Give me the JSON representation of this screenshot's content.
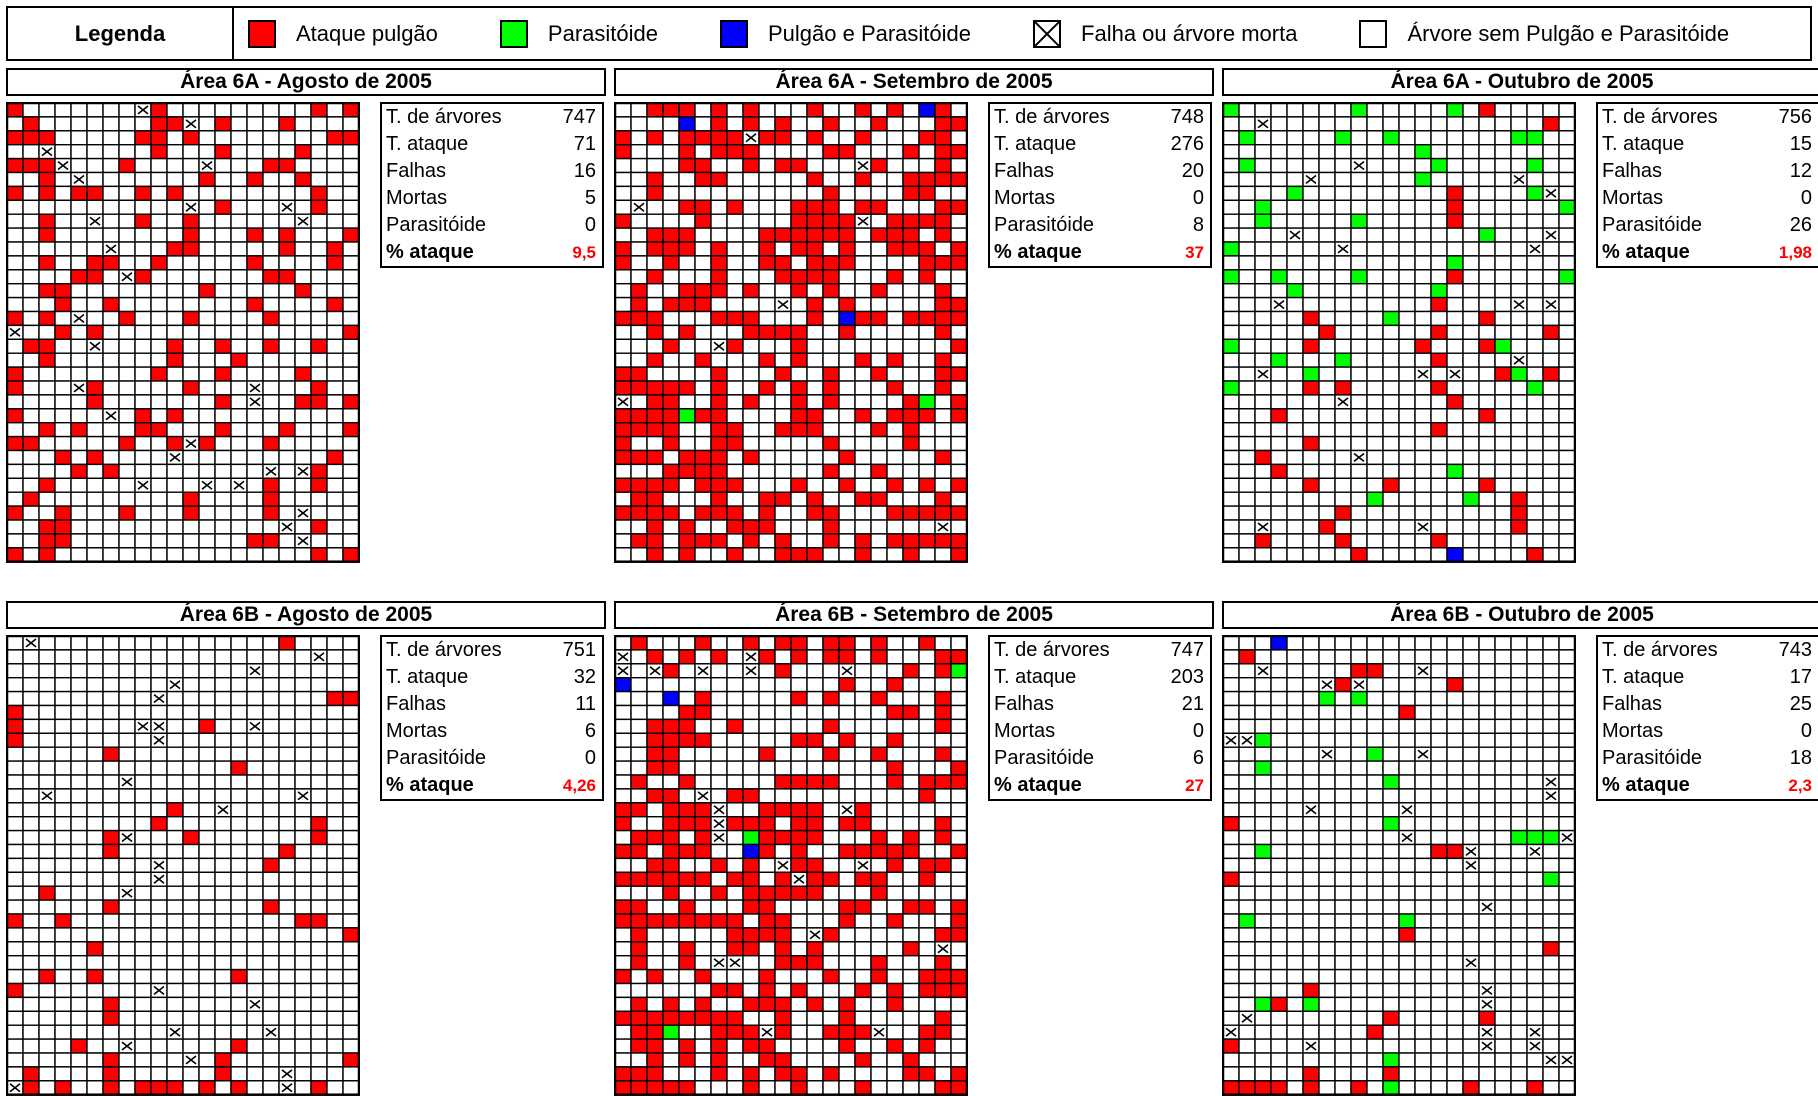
{
  "legend": {
    "title": "Legenda",
    "items": [
      {
        "label": "Ataque pulgão",
        "color": "#ff0000",
        "type": "fill"
      },
      {
        "label": "Parasitóide",
        "color": "#00ff00",
        "type": "fill"
      },
      {
        "label": "Pulgão e Parasitóide",
        "color": "#0000ff",
        "type": "fill"
      },
      {
        "label": "Falha ou árvore morta",
        "color": "#ffffff",
        "type": "cross"
      },
      {
        "label": "Árvore sem Pulgão e Parasitóide",
        "color": "#ffffff",
        "type": "empty"
      }
    ]
  },
  "stat_labels": {
    "trees": "T. de árvores",
    "attack": "T. ataque",
    "failures": "Falhas",
    "dead": "Mortas",
    "parasitoid": "Parasitóide",
    "pct": "% ataque"
  },
  "chart_data": [
    {
      "type": "heatmap",
      "title": "Área 6A - Agosto de 2005",
      "cols": 22,
      "rows": 33,
      "stats": {
        "trees": "747",
        "attack": "71",
        "failures": "16",
        "dead": "5",
        "parasitoid": "0",
        "pct": "9,5"
      },
      "cells": [
        "R.......XR.........R.R",
        ".R.......RRX.R...R....",
        "RRR.....RR.R........RR",
        "..X......R...R....R...",
        "RRRX...R....X...RR....",
        "..R.X.......R..R..R...",
        "R.R.RR..R.R........R..",
        "...........X.R...X.R..",
        "..R..X..R..R......X...",
        "..R........R...R.R...R",
        "......X...RR.....R..R.",
        "..R..RR..R.....R....R.",
        "....RR.XR.......RR....",
        "..RR........R.....R...",
        "...R..R........R....R.",
        "R.R.X..R...R....R.....",
        "X..R.R...............R",
        ".RR..X....R..R..R..R..",
        "..R.......R...R.......",
        "R........R...R....R...",
        "R...XR.....R...X...R..",
        ".....R.......R.X..RR.R",
        "R.....X.R.R...........",
        "..R.R...RR...R...R...R",
        "RR.....R..RXR...R.....",
        "...R.R....X.........R.",
        "....R.R.........X.XR..",
        "..R.....X...X.X.R..R..",
        ".R.........R....R.....",
        "R..R...R...R....R.X...",
        "..RR.............X.R..",
        "..RR...........RR.X...",
        "R.R................R.R"
      ]
    },
    {
      "type": "heatmap",
      "title": "Área 6A - Setembro de 2005",
      "cols": 22,
      "rows": 33,
      "stats": {
        "trees": "748",
        "attack": "276",
        "failures": "20",
        "dead": "0",
        "parasitoid": "8",
        "pct": "37"
      },
      "cells": [
        "..RRR.R.R...R..R.R.BR.",
        "....B.R.R.R..R..R...RR",
        "R.R.RRRRXRR.R..R...RR.",
        "R...R.RRR....RR...R.RR",
        "....RR..R.RR...XR...R.",
        "..R..RR.....R..R..RRRR",
        "..R..........R....RR..",
        ".X..RR.R...RRR.RR...RR",
        "R....R.....RRRRX.RRRR.",
        "..RRR....RRRRRR.RRR.R.",
        "R.RRR.R..R.RR.R..RRR.R",
        "R..R..R..RR.RRR....RRR",
        "..R...R...RRRR...R.R..",
        ".R..RRR.R..R.R..R...R.",
        ".R.RRR....X.R.R.....RR",
        "RRR...RRR...R.BRR.RRRR",
        "..R.R...RRRR..R.....R.",
        "...R..XR...R.........R",
        "..R..R...R.R...R.R..R.",
        "RR....R...R..R..R...RR",
        "RRRRR.R..R.R.R...R..R.",
        "X.RR..R.R..R.R....RG.R",
        "RRRRGRR....RR..R.RRR.R",
        "RRRR..RR..RRR...R.R...",
        "R..R..RR.....R....R...",
        "RRR.RRR.R.....R.....R.",
        "...RRRR......R..R.....",
        "RRRR.RRR...R..R..R.R.R",
        ".RR...R..RR.R..RR...R.",
        "RRRR.RRR.R..RR...RRRRR",
        "..R.R..RRR...R......X.",
        ".RR.RRR.R.R..R.R.RRRRR",
        "..R.R..R..RRR..R..R..R"
      ]
    },
    {
      "type": "heatmap",
      "title": "Área 6A - Outubro de 2005",
      "cols": 22,
      "rows": 33,
      "stats": {
        "trees": "756",
        "attack": "15",
        "failures": "12",
        "dead": "0",
        "parasitoid": "26",
        "pct": "1,98"
      },
      "cells": [
        "G.......G.....G.R.....",
        "..X.................R.",
        ".G.....G..G.......GG..",
        "............G...........",
        ".G......X....G.....G..",
        ".....X......G.....X...",
        "....G.........R....GX.",
        "..G...........R......G",
        "..G.....G.....R.......",
        "....X...........G...X.",
        "G......X...........X..",
        "..............G.......",
        "G..G....G.....R......G",
        "....G........G........",
        "...X.........R....X.X.",
        ".....R....G.....R.....",
        "......R......R......R.",
        "G....R......R...RG....",
        "...G...G.....R....X...",
        "..X..G......X.X..RG.R.",
        "G....R.R.....R.....G..",
        ".......X......R.......",
        "...R............R.....",
        ".............R........",
        ".....R................",
        "..R.....X.............",
        "...R..........G.......",
        ".....R....R.....R.....",
        ".........G.....G..R...",
        ".......R..........R...",
        "..X...R.....X.....R...",
        "..R....R.....R........",
        "........R.....B....R.."
      ]
    },
    {
      "type": "heatmap",
      "title": "Área 6B - Agosto de 2005",
      "cols": 22,
      "rows": 33,
      "stats": {
        "trees": "751",
        "attack": "32",
        "failures": "11",
        "dead": "6",
        "parasitoid": "0",
        "pct": "4,26"
      },
      "cells": [
        ".X...............R....",
        "...................X..",
        "...............X......",
        "..........X...........",
        ".........X..........RR",
        "R.....................",
        "R.......XX..R..X......",
        "R........X............",
        "......R...............",
        "..............R.......",
        ".......X..............",
        "..X...............X...",
        "..........R..X........",
        ".........R.........R..",
        "......RX...R.......R..",
        "......R..........R....",
        ".........X......R.....",
        ".........X............",
        "..R....X..............",
        "......R.........R.....",
        "R..R..............RR..",
        ".....................R",
        ".....R................",
        "......................",
        "..R..R........R.......",
        "R........X............",
        "......R........X......",
        "......R...............",
        "..........X.....X.....",
        "....R..X......R.......",
        "......R....X.R.......R",
        ".R....R......R...X....",
        "XR.R..R.RRR.R.R..X.R.."
      ]
    },
    {
      "type": "heatmap",
      "title": "Área 6B - Setembro de 2005",
      "cols": 22,
      "rows": 33,
      "stats": {
        "trees": "747",
        "attack": "203",
        "failures": "21",
        "dead": "0",
        "parasitoid": "6",
        "pct": "27"
      },
      "cells": [
        ".R...R..R.RR.RR.R..R..",
        "X.R.R.R.XR.R.RR.R...RR",
        "X.XR.X..X.R...X...R.RG",
        "B.............R..R....",
        "...B.R.....R.R..R...R.",
        "....RR...........RR.R.",
        "..RRR..R.....R......R.",
        "..RRRR.....RR.R..R....",
        "..RR.....R...R..R...R.",
        "..RR.............R...R",
        ".R..R.....RRRR...R.RRR",
        "..RR.X.RR..........R..",
        "RR.RRRX..RRRR.XR......",
        "R..RRRXRRR.RR.RR....R.",
        ".RRR.RX.GRRRR...R.R.R.",
        "RR.RRR..BR.R..RRRRR..R",
        "..RR..R.R.XRR..X.R.RR.",
        "RRRRRR.RR.RXRR.RR..R..",
        "...R..R.RRRRR...R.....",
        "RR..R...RR....RR..RR.R",
        "RRRRRRRR.RR...R..R...R",
        ".R.....RRRR.XR......RR",
        ".R..R..RR.R.R.....R.X.",
        ".R..R.XX..RRR...R...R.",
        "R.R..R...R...R..R..RRR",
        "......RR.R.R...R.R.RRR",
        ".R.R.R..RRR.R.R..R....",
        "RRRRRRRR..R...R.....R.",
        ".RRG..RRRXR..RRRX..RR.",
        ".RR.R.R.RR....R..R.R..",
        "..R.R.R..RR....R..R...",
        "RRR...R.R.RR.R....RR.R",
        "RRRRR...R..R...R....RR"
      ]
    },
    {
      "type": "heatmap",
      "title": "Área 6B - Outubro de 2005",
      "cols": 22,
      "rows": 33,
      "stats": {
        "trees": "743",
        "attack": "17",
        "failures": "25",
        "dead": "0",
        "parasitoid": "18",
        "pct": "2,3"
      },
      "cells": [
        "...B..................",
        ".R....................",
        "..X.....RR..X.........",
        "......XRX.....R.......",
        "......G.G.............",
        "...........R..........",
        "......................",
        "XXG...................",
        "......X..G..X.........",
        "..G...................",
        "..........G.........X.",
        "....................X.",
        ".....X.....X..........",
        "R.........G...........",
        "...........X......GGGX",
        "..G..........RRX...X..",
        "...............X......",
        "R...................G.",
        "......................",
        "................X.....",
        ".G.........G..........",
        "...........R..........",
        "....................R.",
        "...............X......",
        "......................",
        ".....R..........X.....",
        "..GR.G..........X.....",
        ".X........R.....R.....",
        "X........R......X..X..",
        "R....X..........X..X..",
        "..........G.........XX",
        ".....R....R...........",
        "RRRR.R..R.G....R...R.."
      ]
    }
  ]
}
